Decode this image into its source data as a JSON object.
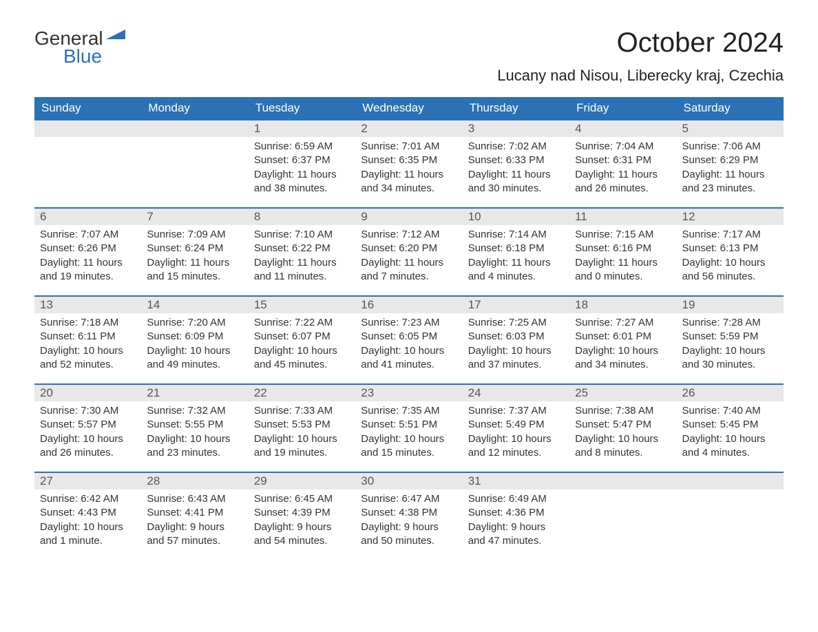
{
  "logo": {
    "text1": "General",
    "text2": "Blue",
    "accent_color": "#2a72b5"
  },
  "title": {
    "month": "October 2024",
    "location": "Lucany nad Nisou, Liberecky kraj, Czechia"
  },
  "colors": {
    "header_bg": "#2a72b5",
    "header_text": "#ffffff",
    "daynum_bg": "#e8e8e8",
    "daynum_text": "#555555",
    "body_text": "#333333",
    "rule": "#2a72b5",
    "page_bg": "#ffffff"
  },
  "typography": {
    "month_fontsize": 40,
    "location_fontsize": 22,
    "weekday_fontsize": 17,
    "daynum_fontsize": 17,
    "body_fontsize": 15
  },
  "weekdays": [
    "Sunday",
    "Monday",
    "Tuesday",
    "Wednesday",
    "Thursday",
    "Friday",
    "Saturday"
  ],
  "weeks": [
    [
      {
        "num": "",
        "sunrise": "",
        "sunset": "",
        "daylight1": "",
        "daylight2": ""
      },
      {
        "num": "",
        "sunrise": "",
        "sunset": "",
        "daylight1": "",
        "daylight2": ""
      },
      {
        "num": "1",
        "sunrise": "Sunrise: 6:59 AM",
        "sunset": "Sunset: 6:37 PM",
        "daylight1": "Daylight: 11 hours",
        "daylight2": "and 38 minutes."
      },
      {
        "num": "2",
        "sunrise": "Sunrise: 7:01 AM",
        "sunset": "Sunset: 6:35 PM",
        "daylight1": "Daylight: 11 hours",
        "daylight2": "and 34 minutes."
      },
      {
        "num": "3",
        "sunrise": "Sunrise: 7:02 AM",
        "sunset": "Sunset: 6:33 PM",
        "daylight1": "Daylight: 11 hours",
        "daylight2": "and 30 minutes."
      },
      {
        "num": "4",
        "sunrise": "Sunrise: 7:04 AM",
        "sunset": "Sunset: 6:31 PM",
        "daylight1": "Daylight: 11 hours",
        "daylight2": "and 26 minutes."
      },
      {
        "num": "5",
        "sunrise": "Sunrise: 7:06 AM",
        "sunset": "Sunset: 6:29 PM",
        "daylight1": "Daylight: 11 hours",
        "daylight2": "and 23 minutes."
      }
    ],
    [
      {
        "num": "6",
        "sunrise": "Sunrise: 7:07 AM",
        "sunset": "Sunset: 6:26 PM",
        "daylight1": "Daylight: 11 hours",
        "daylight2": "and 19 minutes."
      },
      {
        "num": "7",
        "sunrise": "Sunrise: 7:09 AM",
        "sunset": "Sunset: 6:24 PM",
        "daylight1": "Daylight: 11 hours",
        "daylight2": "and 15 minutes."
      },
      {
        "num": "8",
        "sunrise": "Sunrise: 7:10 AM",
        "sunset": "Sunset: 6:22 PM",
        "daylight1": "Daylight: 11 hours",
        "daylight2": "and 11 minutes."
      },
      {
        "num": "9",
        "sunrise": "Sunrise: 7:12 AM",
        "sunset": "Sunset: 6:20 PM",
        "daylight1": "Daylight: 11 hours",
        "daylight2": "and 7 minutes."
      },
      {
        "num": "10",
        "sunrise": "Sunrise: 7:14 AM",
        "sunset": "Sunset: 6:18 PM",
        "daylight1": "Daylight: 11 hours",
        "daylight2": "and 4 minutes."
      },
      {
        "num": "11",
        "sunrise": "Sunrise: 7:15 AM",
        "sunset": "Sunset: 6:16 PM",
        "daylight1": "Daylight: 11 hours",
        "daylight2": "and 0 minutes."
      },
      {
        "num": "12",
        "sunrise": "Sunrise: 7:17 AM",
        "sunset": "Sunset: 6:13 PM",
        "daylight1": "Daylight: 10 hours",
        "daylight2": "and 56 minutes."
      }
    ],
    [
      {
        "num": "13",
        "sunrise": "Sunrise: 7:18 AM",
        "sunset": "Sunset: 6:11 PM",
        "daylight1": "Daylight: 10 hours",
        "daylight2": "and 52 minutes."
      },
      {
        "num": "14",
        "sunrise": "Sunrise: 7:20 AM",
        "sunset": "Sunset: 6:09 PM",
        "daylight1": "Daylight: 10 hours",
        "daylight2": "and 49 minutes."
      },
      {
        "num": "15",
        "sunrise": "Sunrise: 7:22 AM",
        "sunset": "Sunset: 6:07 PM",
        "daylight1": "Daylight: 10 hours",
        "daylight2": "and 45 minutes."
      },
      {
        "num": "16",
        "sunrise": "Sunrise: 7:23 AM",
        "sunset": "Sunset: 6:05 PM",
        "daylight1": "Daylight: 10 hours",
        "daylight2": "and 41 minutes."
      },
      {
        "num": "17",
        "sunrise": "Sunrise: 7:25 AM",
        "sunset": "Sunset: 6:03 PM",
        "daylight1": "Daylight: 10 hours",
        "daylight2": "and 37 minutes."
      },
      {
        "num": "18",
        "sunrise": "Sunrise: 7:27 AM",
        "sunset": "Sunset: 6:01 PM",
        "daylight1": "Daylight: 10 hours",
        "daylight2": "and 34 minutes."
      },
      {
        "num": "19",
        "sunrise": "Sunrise: 7:28 AM",
        "sunset": "Sunset: 5:59 PM",
        "daylight1": "Daylight: 10 hours",
        "daylight2": "and 30 minutes."
      }
    ],
    [
      {
        "num": "20",
        "sunrise": "Sunrise: 7:30 AM",
        "sunset": "Sunset: 5:57 PM",
        "daylight1": "Daylight: 10 hours",
        "daylight2": "and 26 minutes."
      },
      {
        "num": "21",
        "sunrise": "Sunrise: 7:32 AM",
        "sunset": "Sunset: 5:55 PM",
        "daylight1": "Daylight: 10 hours",
        "daylight2": "and 23 minutes."
      },
      {
        "num": "22",
        "sunrise": "Sunrise: 7:33 AM",
        "sunset": "Sunset: 5:53 PM",
        "daylight1": "Daylight: 10 hours",
        "daylight2": "and 19 minutes."
      },
      {
        "num": "23",
        "sunrise": "Sunrise: 7:35 AM",
        "sunset": "Sunset: 5:51 PM",
        "daylight1": "Daylight: 10 hours",
        "daylight2": "and 15 minutes."
      },
      {
        "num": "24",
        "sunrise": "Sunrise: 7:37 AM",
        "sunset": "Sunset: 5:49 PM",
        "daylight1": "Daylight: 10 hours",
        "daylight2": "and 12 minutes."
      },
      {
        "num": "25",
        "sunrise": "Sunrise: 7:38 AM",
        "sunset": "Sunset: 5:47 PM",
        "daylight1": "Daylight: 10 hours",
        "daylight2": "and 8 minutes."
      },
      {
        "num": "26",
        "sunrise": "Sunrise: 7:40 AM",
        "sunset": "Sunset: 5:45 PM",
        "daylight1": "Daylight: 10 hours",
        "daylight2": "and 4 minutes."
      }
    ],
    [
      {
        "num": "27",
        "sunrise": "Sunrise: 6:42 AM",
        "sunset": "Sunset: 4:43 PM",
        "daylight1": "Daylight: 10 hours",
        "daylight2": "and 1 minute."
      },
      {
        "num": "28",
        "sunrise": "Sunrise: 6:43 AM",
        "sunset": "Sunset: 4:41 PM",
        "daylight1": "Daylight: 9 hours",
        "daylight2": "and 57 minutes."
      },
      {
        "num": "29",
        "sunrise": "Sunrise: 6:45 AM",
        "sunset": "Sunset: 4:39 PM",
        "daylight1": "Daylight: 9 hours",
        "daylight2": "and 54 minutes."
      },
      {
        "num": "30",
        "sunrise": "Sunrise: 6:47 AM",
        "sunset": "Sunset: 4:38 PM",
        "daylight1": "Daylight: 9 hours",
        "daylight2": "and 50 minutes."
      },
      {
        "num": "31",
        "sunrise": "Sunrise: 6:49 AM",
        "sunset": "Sunset: 4:36 PM",
        "daylight1": "Daylight: 9 hours",
        "daylight2": "and 47 minutes."
      },
      {
        "num": "",
        "sunrise": "",
        "sunset": "",
        "daylight1": "",
        "daylight2": ""
      },
      {
        "num": "",
        "sunrise": "",
        "sunset": "",
        "daylight1": "",
        "daylight2": ""
      }
    ]
  ]
}
